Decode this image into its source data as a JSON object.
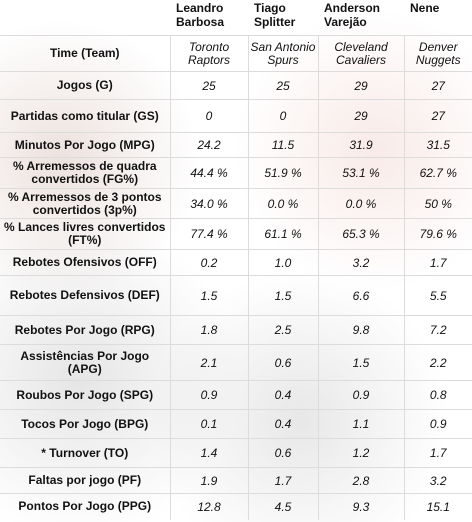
{
  "headers": [
    "",
    "Leandro Barbosa",
    "Tiago Splitter",
    "Anderson Varejão",
    "Nene"
  ],
  "team_row": {
    "label": "Time (Team)",
    "teams": [
      "Toronto Raptors",
      "San Antonio Spurs",
      "Cleveland Cavaliers",
      "Denver Nuggets"
    ]
  },
  "rows": [
    {
      "label": "Jogos (G)",
      "values": [
        "25",
        "25",
        "29",
        "27"
      ]
    },
    {
      "label": "Partidas como titular (GS)",
      "values": [
        "0",
        "0",
        "29",
        "27"
      ]
    },
    {
      "label": "Minutos Por Jogo (MPG)",
      "values": [
        "24.2",
        "11.5",
        "31.9",
        "31.5"
      ]
    },
    {
      "label": "% Arremessos de quadra convertidos (FG%)",
      "values": [
        "44.4 %",
        "51.9 %",
        "53.1 %",
        "62.7 %"
      ]
    },
    {
      "label": "% Arremessos de 3 pontos convertidos (3p%)",
      "values": [
        "34.0 %",
        "0.0 %",
        "0.0 %",
        "50 %"
      ]
    },
    {
      "label": "% Lances livres convertidos (FT%)",
      "values": [
        "77.4 %",
        "61.1 %",
        "65.3 %",
        "79.6 %"
      ]
    },
    {
      "label": "Rebotes Ofensivos (OFF)",
      "values": [
        "0.2",
        "1.0",
        "3.2",
        "1.7"
      ]
    },
    {
      "label": "Rebotes Defensivos (DEF)",
      "values": [
        "1.5",
        "1.5",
        "6.6",
        "5.5"
      ]
    },
    {
      "label": "Rebotes Por Jogo (RPG)",
      "values": [
        "1.8",
        "2.5",
        "9.8",
        "7.2"
      ]
    },
    {
      "label": "Assistências Por Jogo (APG)",
      "values": [
        "2.1",
        "0.6",
        "1.5",
        "2.2"
      ]
    },
    {
      "label": "Roubos Por Jogo (SPG)",
      "values": [
        "0.9",
        "0.4",
        "0.9",
        "0.8"
      ]
    },
    {
      "label": "Tocos Por Jogo (BPG)",
      "values": [
        "0.1",
        "0.4",
        "1.1",
        "0.9"
      ]
    },
    {
      "label": "* Turnover (TO)",
      "values": [
        "1.4",
        "0.6",
        "1.2",
        "1.7"
      ]
    },
    {
      "label": "Faltas por jogo (PF)",
      "values": [
        "1.9",
        "1.7",
        "2.8",
        "3.2"
      ]
    },
    {
      "label": "Pontos Por Jogo (PPG)",
      "values": [
        "12.8",
        "4.5",
        "9.3",
        "15.1"
      ]
    }
  ]
}
